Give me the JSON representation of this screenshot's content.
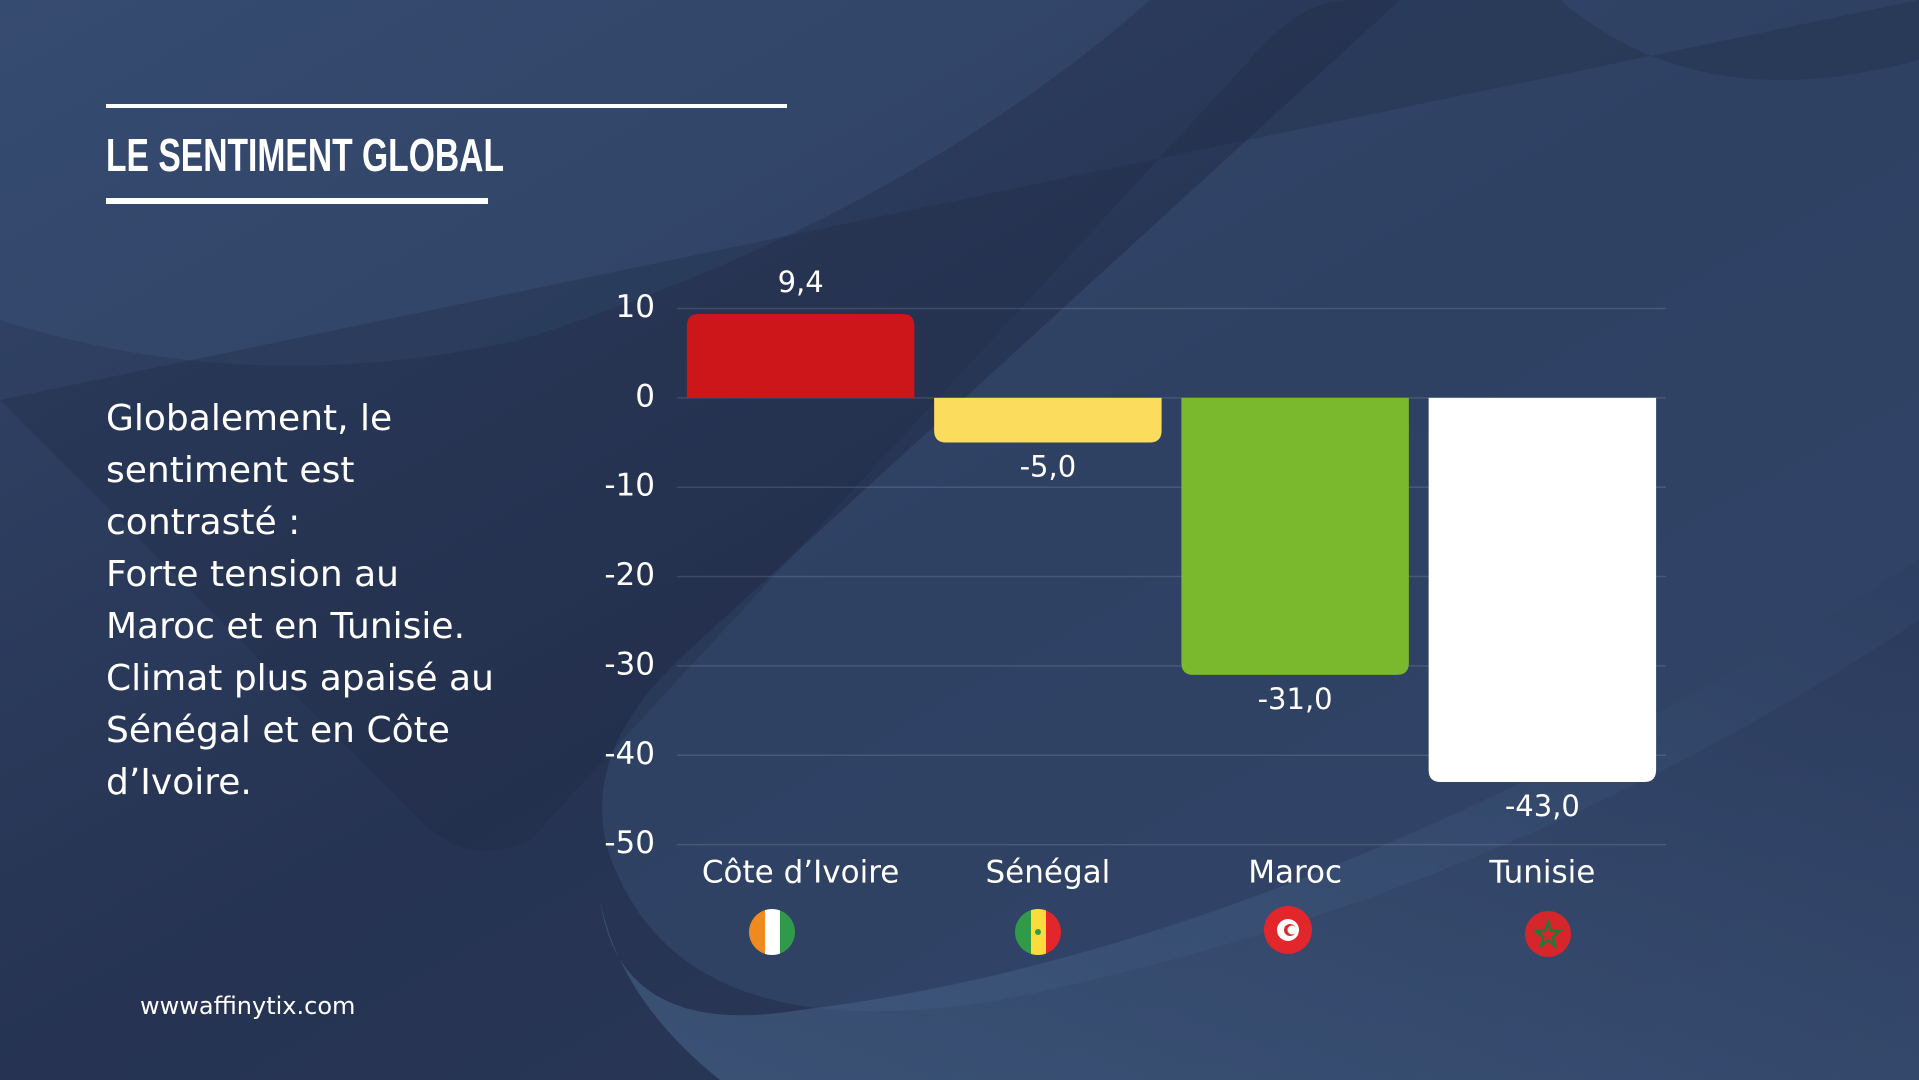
{
  "chart_data": {
    "type": "bar",
    "title": "LE SENTIMENT GLOBAL",
    "categories": [
      "Côte d’Ivoire",
      "Sénégal",
      "Maroc",
      "Tunisie"
    ],
    "values": [
      9.4,
      -5.0,
      -31.0,
      -43.0
    ],
    "value_labels": [
      "9,4",
      "-5,0",
      "-31,0",
      "-43,0"
    ],
    "colors": [
      "#cc1619",
      "#fcdc5c",
      "#7ab92e",
      "#ffffff"
    ],
    "ylim": [
      -50,
      10
    ],
    "yticks": [
      10,
      0,
      -10,
      -20,
      -30,
      -40,
      -50
    ],
    "grid": true
  },
  "description": [
    "Globalement, le",
    "sentiment est",
    "contrasté :",
    "Forte tension au",
    "Maroc et en Tunisie.",
    "Climat plus apaisé au",
    "Sénégal et en Côte",
    "d’Ivoire."
  ],
  "footer": "wwwaffinytix.com"
}
